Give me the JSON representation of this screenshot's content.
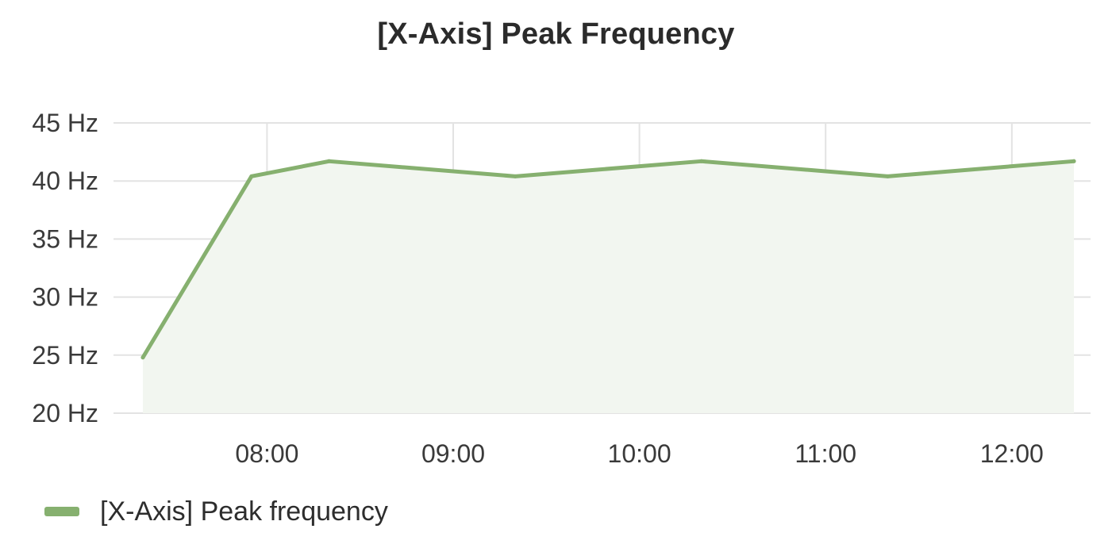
{
  "panel": {
    "title": "[X-Axis] Peak Frequency"
  },
  "colors": {
    "series_line": "#86b06f",
    "series_fill": "#f2f6f0",
    "grid": "#e3e3e3"
  },
  "chart_data": {
    "type": "area",
    "title": "[X-Axis] Peak Frequency",
    "xlabel": "",
    "ylabel": "",
    "x_tick_labels": [
      "08:00",
      "09:00",
      "10:00",
      "11:00",
      "12:00"
    ],
    "y_tick_labels": [
      "20 Hz",
      "25 Hz",
      "30 Hz",
      "35 Hz",
      "40 Hz",
      "45 Hz"
    ],
    "y_ticks": [
      20,
      25,
      30,
      35,
      40,
      45
    ],
    "ylim": [
      20,
      45
    ],
    "xlim": [
      "07:20",
      "12:20"
    ],
    "grid": true,
    "legend_position": "bottom-left",
    "series": [
      {
        "name": "[X-Axis] Peak frequency",
        "x": [
          "07:20",
          "07:55",
          "08:20",
          "09:20",
          "10:20",
          "11:20",
          "12:20"
        ],
        "values": [
          24.8,
          40.4,
          41.7,
          40.4,
          41.7,
          40.4,
          41.7
        ]
      }
    ]
  },
  "legend": {
    "items": [
      {
        "label": "[X-Axis] Peak frequency"
      }
    ]
  }
}
